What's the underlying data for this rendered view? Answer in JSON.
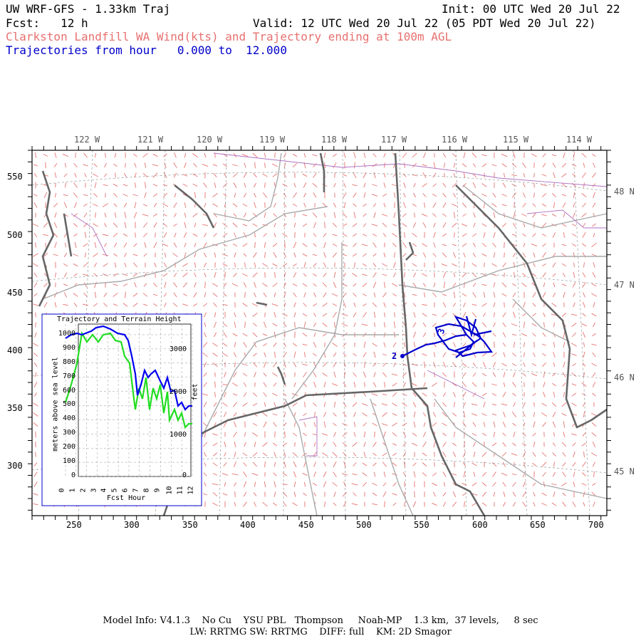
{
  "header": {
    "model": "UW WRF-GFS - 1.33km Traj",
    "init": "Init: 00 UTC Wed 20 Jul 22",
    "fcst": "Fcst:   12 h",
    "valid": "Valid: 12 UTC Wed 20 Jul 22 (05 PDT Wed 20 Jul 22)",
    "description": "Clarkston Landfill WA Wind(kts) and Trajectory ending at 100m AGL",
    "traj_range": "Trajectories from hour   0.000 to  12.000"
  },
  "map": {
    "top_lon_labels": [
      "122 W",
      "121 W",
      "120 W",
      "119 W",
      "118 W",
      "117 W",
      "116 W",
      "115 W",
      "114 W"
    ],
    "right_lat_labels": [
      "48 N",
      "47 N",
      "46 N",
      "45 N"
    ],
    "x_ticks": [
      "250",
      "300",
      "350",
      "400",
      "450",
      "500",
      "550",
      "600",
      "650",
      "700"
    ],
    "y_ticks": [
      "550",
      "500",
      "450",
      "400",
      "350",
      "300"
    ],
    "traj_markers": [
      "2",
      "3"
    ],
    "colors": {
      "barbs": "#e87070",
      "trajectory": "#0000cc",
      "coast": "#666666",
      "roads": "#aaaaaa",
      "county": "#b070c0"
    }
  },
  "inset": {
    "title": "Trajectory and Terrain Height",
    "y_left_label": "meters above sea level",
    "y_right_label": "feet",
    "x_label": "Fcst Hour",
    "y_left_ticks": [
      "0",
      "100",
      "200",
      "300",
      "400",
      "500",
      "600",
      "700",
      "800",
      "900",
      "1000"
    ],
    "y_right_ticks": [
      "3000",
      "2000",
      "1000",
      "0"
    ],
    "x_ticks": [
      "0",
      "1",
      "2",
      "3",
      "4",
      "5",
      "6",
      "7",
      "8",
      "9",
      "10",
      "11",
      "12"
    ],
    "series_colors": {
      "trajectory": "#0000ff",
      "terrain": "#22dd22"
    }
  },
  "footer": {
    "line1": "Model Info: V4.1.3    No Cu    YSU PBL   Thompson     Noah-MP    1.3 km,  37 levels,     8 sec",
    "line2": "LW: RRTMG SW: RRTMG    DIFF: full    KM: 2D Smagor"
  }
}
